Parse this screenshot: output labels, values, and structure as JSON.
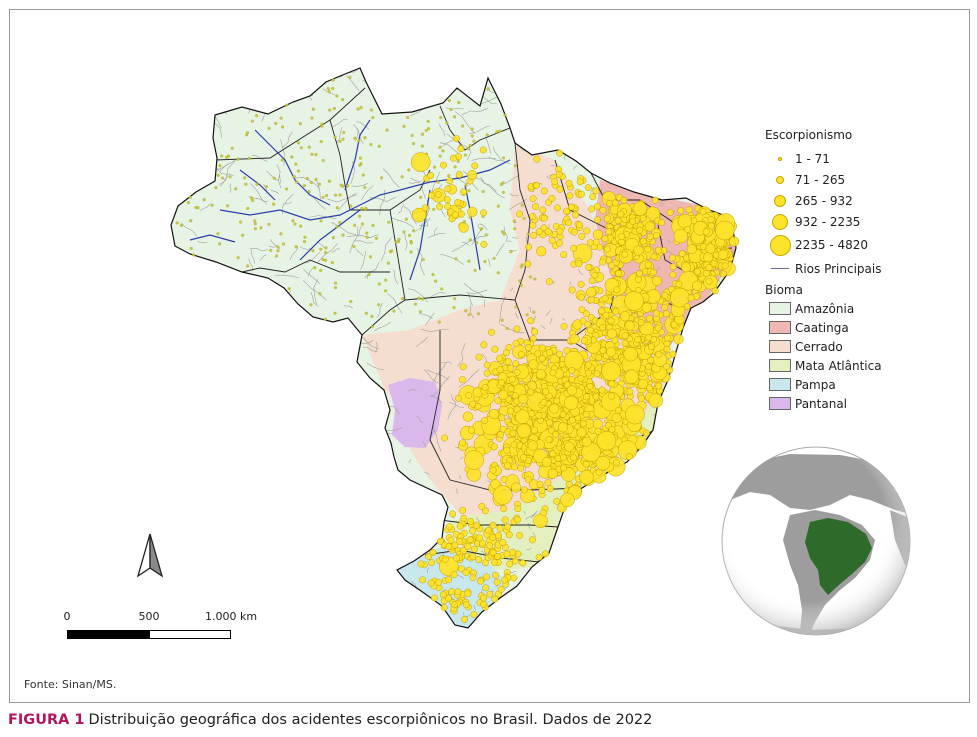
{
  "map": {
    "legend": {
      "title": "Escorpionismo",
      "classes": [
        {
          "label": "1 - 71",
          "size": 1
        },
        {
          "label": "71 - 265",
          "size": 2
        },
        {
          "label": "265 - 932",
          "size": 3
        },
        {
          "label": "932 - 2235",
          "size": 4
        },
        {
          "label": "2235 - 4820",
          "size": 5
        }
      ],
      "rivers_label": "Rios Principais",
      "biome_title": "Bioma",
      "biomes": [
        {
          "label": "Amazônia",
          "color": "#e7f3e4"
        },
        {
          "label": "Caatinga",
          "color": "#efb7b2"
        },
        {
          "label": "Cerrado",
          "color": "#f5ddcf"
        },
        {
          "label": "Mata Atlântica",
          "color": "#e4efbf"
        },
        {
          "label": "Pampa",
          "color": "#c9e8ee"
        },
        {
          "label": "Pantanal",
          "color": "#dbb8ec"
        }
      ]
    },
    "scale_bar": {
      "labels": [
        "0",
        "500",
        "1.000 km"
      ]
    },
    "globe": {
      "ocean_color": "#ffffff",
      "land_color": "#9d9d9d",
      "highlight_color": "#2e6b2a"
    },
    "point_color": "#fde32a",
    "source": "Fonte: Sinan/MS."
  },
  "caption": {
    "figure_label": "FIGURA 1",
    "text": "Distribuição geográfica dos acidentes escorpiônicos no Brasil. Dados de 2022"
  }
}
